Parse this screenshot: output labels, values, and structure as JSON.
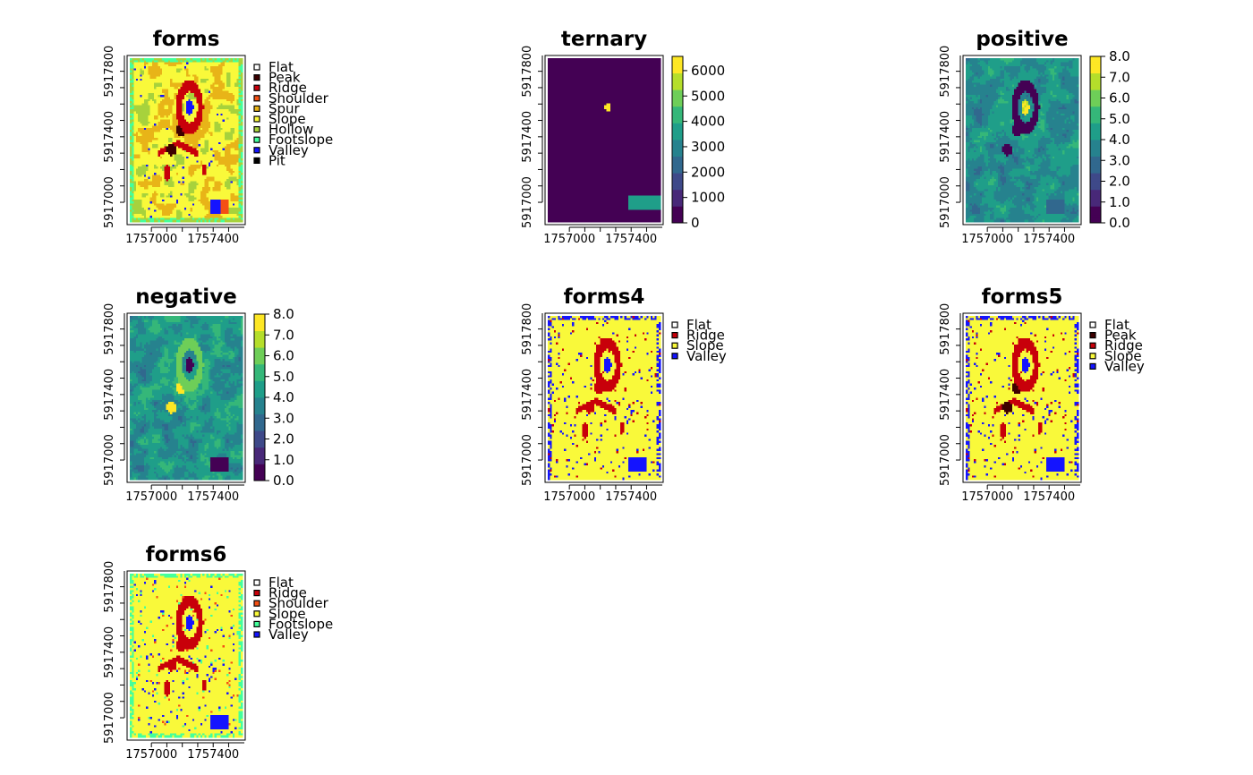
{
  "chart_data": [
    {
      "type": "heatmap",
      "title": "forms",
      "raster_kind": "categorical",
      "palette_variant": "forms",
      "xlim": [
        1756860,
        1757590
      ],
      "ylim": [
        5916880,
        5917880
      ],
      "xticks": [
        "1757000",
        "1757400"
      ],
      "yticks": [
        "5917000",
        "5917400",
        "5917800"
      ],
      "legend_items": [
        {
          "label": "Flat",
          "color": "#ffffff"
        },
        {
          "label": "Peak",
          "color": "#3d0000"
        },
        {
          "label": "Ridge",
          "color": "#c8000a"
        },
        {
          "label": "Shoulder",
          "color": "#f45014"
        },
        {
          "label": "Spur",
          "color": "#e8b418"
        },
        {
          "label": "Slope",
          "color": "#f9f93a"
        },
        {
          "label": "Hollow",
          "color": "#a7d23c"
        },
        {
          "label": "Footslope",
          "color": "#44ff9b"
        },
        {
          "label": "Valley",
          "color": "#1414ff"
        },
        {
          "label": "Pit",
          "color": "#000000"
        }
      ]
    },
    {
      "type": "heatmap",
      "title": "ternary",
      "raster_kind": "continuous",
      "palette_variant": "ternary",
      "xlim": [
        1756860,
        1757590
      ],
      "ylim": [
        5916880,
        5917880
      ],
      "xticks": [
        "1757000",
        "1757400"
      ],
      "yticks": [
        "5917000",
        "5917400",
        "5917800"
      ],
      "value_range": [
        0,
        6561
      ],
      "colorbar_ticks": [
        "0",
        "1000",
        "2000",
        "3000",
        "4000",
        "5000",
        "6000"
      ]
    },
    {
      "type": "heatmap",
      "title": "positive",
      "raster_kind": "continuous",
      "palette_variant": "positive",
      "xlim": [
        1756860,
        1757590
      ],
      "ylim": [
        5916880,
        5917880
      ],
      "xticks": [
        "1757000",
        "1757400"
      ],
      "yticks": [
        "5917000",
        "5917400",
        "5917800"
      ],
      "value_range": [
        0,
        8
      ],
      "colorbar_ticks": [
        "0.0",
        "1.0",
        "2.0",
        "3.0",
        "4.0",
        "5.0",
        "6.0",
        "7.0",
        "8.0"
      ]
    },
    {
      "type": "heatmap",
      "title": "negative",
      "raster_kind": "continuous",
      "palette_variant": "negative",
      "xlim": [
        1756860,
        1757590
      ],
      "ylim": [
        5916880,
        5917880
      ],
      "xticks": [
        "1757000",
        "1757400"
      ],
      "yticks": [
        "5917000",
        "5917400",
        "5917800"
      ],
      "value_range": [
        0,
        8
      ],
      "colorbar_ticks": [
        "0.0",
        "1.0",
        "2.0",
        "3.0",
        "4.0",
        "5.0",
        "6.0",
        "7.0",
        "8.0"
      ]
    },
    {
      "type": "heatmap",
      "title": "forms4",
      "raster_kind": "categorical",
      "palette_variant": "forms4",
      "xlim": [
        1756860,
        1757590
      ],
      "ylim": [
        5916880,
        5917880
      ],
      "xticks": [
        "1757000",
        "1757400"
      ],
      "yticks": [
        "5917000",
        "5917400",
        "5917800"
      ],
      "legend_items": [
        {
          "label": "Flat",
          "color": "#ffffff"
        },
        {
          "label": "Ridge",
          "color": "#c8000a"
        },
        {
          "label": "Slope",
          "color": "#f9f93a"
        },
        {
          "label": "Valley",
          "color": "#1414ff"
        }
      ]
    },
    {
      "type": "heatmap",
      "title": "forms5",
      "raster_kind": "categorical",
      "palette_variant": "forms5",
      "xlim": [
        1756860,
        1757590
      ],
      "ylim": [
        5916880,
        5917880
      ],
      "xticks": [
        "1757000",
        "1757400"
      ],
      "yticks": [
        "5917000",
        "5917400",
        "5917800"
      ],
      "legend_items": [
        {
          "label": "Flat",
          "color": "#ffffff"
        },
        {
          "label": "Peak",
          "color": "#3d0000"
        },
        {
          "label": "Ridge",
          "color": "#c8000a"
        },
        {
          "label": "Slope",
          "color": "#f9f93a"
        },
        {
          "label": "Valley",
          "color": "#1414ff"
        }
      ]
    },
    {
      "type": "heatmap",
      "title": "forms6",
      "raster_kind": "categorical",
      "palette_variant": "forms6",
      "xlim": [
        1756860,
        1757590
      ],
      "ylim": [
        5916880,
        5917880
      ],
      "xticks": [
        "1757000",
        "1757400"
      ],
      "yticks": [
        "5917000",
        "5917400",
        "5917800"
      ],
      "legend_items": [
        {
          "label": "Flat",
          "color": "#ffffff"
        },
        {
          "label": "Ridge",
          "color": "#c8000a"
        },
        {
          "label": "Shoulder",
          "color": "#f45014"
        },
        {
          "label": "Slope",
          "color": "#f9f93a"
        },
        {
          "label": "Footslope",
          "color": "#44ff9b"
        },
        {
          "label": "Valley",
          "color": "#1414ff"
        }
      ]
    }
  ]
}
